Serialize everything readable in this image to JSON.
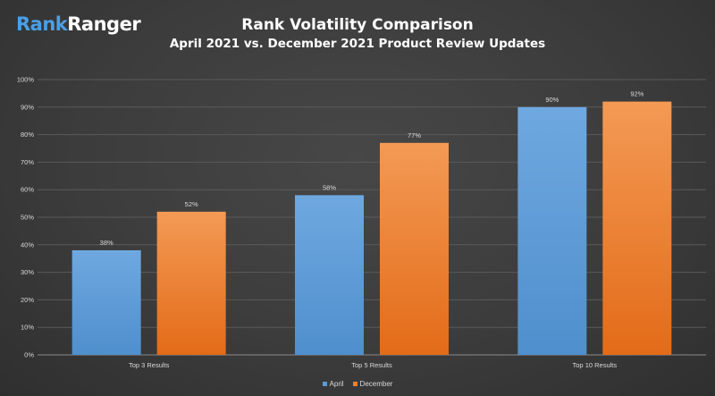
{
  "logo": {
    "part1": "Rank",
    "part2": "Ranger"
  },
  "colors": {
    "april": "#5b9bd5",
    "december": "#ed7d31",
    "background": "#404040"
  },
  "chart_data": {
    "type": "bar",
    "title": "Rank Volatility Comparison",
    "subtitle": "April 2021 vs. December 2021 Product Review Updates",
    "categories": [
      "Top 3 Results",
      "Top 5 Results",
      "Top 10 Results"
    ],
    "series": [
      {
        "name": "April",
        "values": [
          38,
          58,
          90
        ],
        "labels": [
          "38%",
          "58%",
          "90%"
        ]
      },
      {
        "name": "December",
        "values": [
          52,
          77,
          92
        ],
        "labels": [
          "52%",
          "77%",
          "92%"
        ]
      }
    ],
    "ylim": [
      0,
      100
    ],
    "yticks": [
      "0%",
      "10%",
      "20%",
      "30%",
      "40%",
      "50%",
      "60%",
      "70%",
      "80%",
      "90%",
      "100%"
    ],
    "grid": true,
    "legend_position": "bottom"
  }
}
